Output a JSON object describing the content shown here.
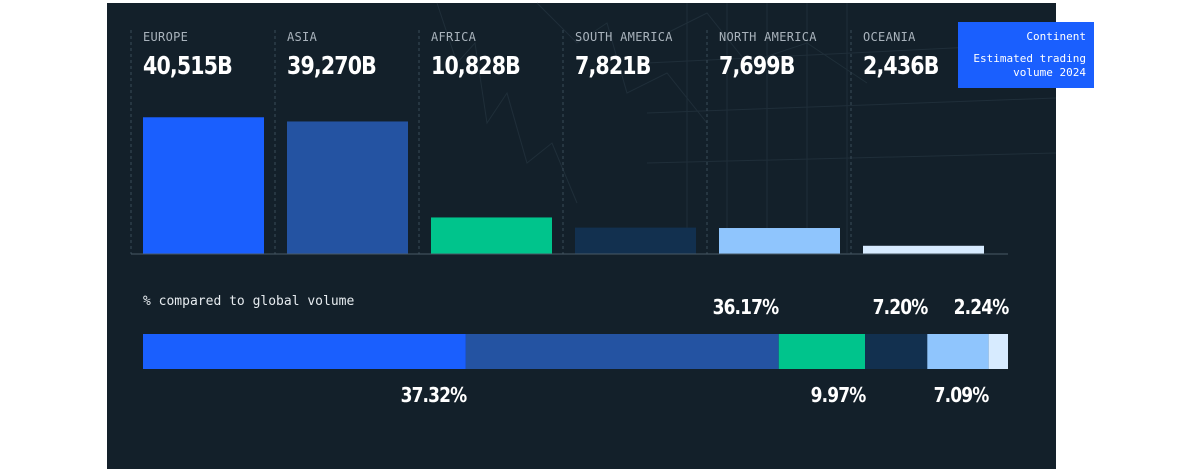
{
  "legend": {
    "title": "Continent",
    "subtitle_line1": "Estimated trading",
    "subtitle_line2": "volume 2024"
  },
  "colors": {
    "background": "#13202a",
    "europe": "#1a5ffe",
    "asia": "#2453a2",
    "africa": "#00c48c",
    "south_america": "#12304f",
    "north_america": "#8fc5fd",
    "oceania": "#d7ebff"
  },
  "chart_data": [
    {
      "type": "bar",
      "categories": [
        "EUROPE",
        "ASIA",
        "AFRICA",
        "SOUTH AMERICA",
        "NORTH AMERICA",
        "OCEANIA"
      ],
      "values": [
        40515,
        39270,
        10828,
        7821,
        7699,
        2436
      ],
      "value_labels": [
        "40,515B",
        "39,270B",
        "10,828B",
        "7,821B",
        "7,699B",
        "2,436B"
      ],
      "title": "",
      "xlabel": "",
      "ylabel": "",
      "ylim": [
        0,
        48000
      ],
      "grid": false,
      "legend": "top-right"
    },
    {
      "type": "bar",
      "subtype": "stacked-100",
      "title": "% compared to global volume",
      "categories": [
        "EUROPE",
        "ASIA",
        "AFRICA",
        "SOUTH AMERICA",
        "NORTH AMERICA",
        "OCEANIA"
      ],
      "values": [
        37.32,
        36.17,
        9.97,
        7.2,
        7.09,
        2.24
      ],
      "value_labels": [
        "37.32%",
        "36.17%",
        "9.97%",
        "7.20%",
        "7.09%",
        "2.24%"
      ],
      "label_positions": [
        "below",
        "above",
        "below",
        "above",
        "below",
        "above"
      ]
    }
  ]
}
